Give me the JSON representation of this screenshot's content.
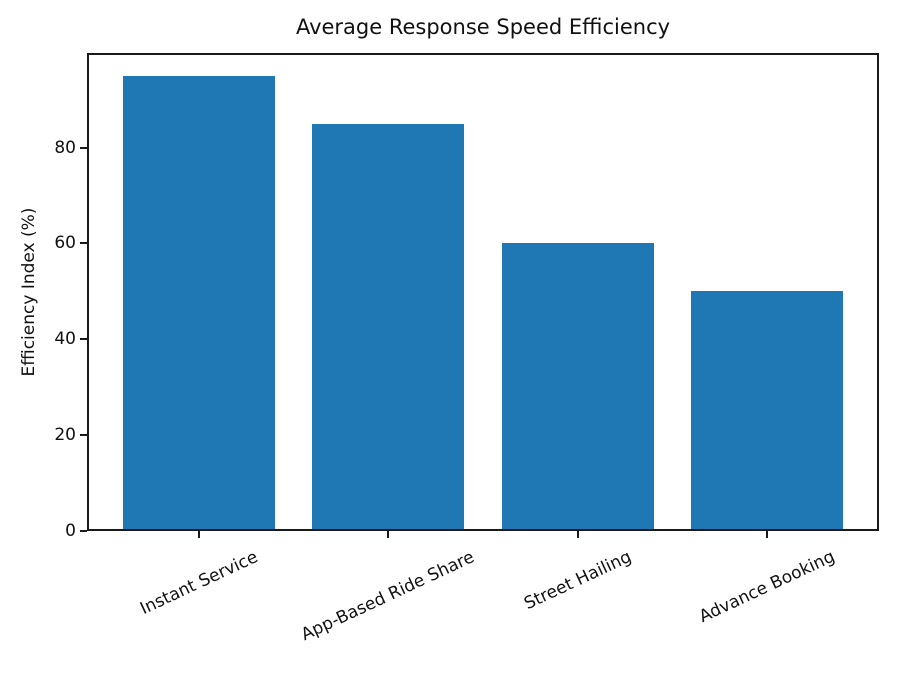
{
  "chart_data": {
    "type": "bar",
    "title": "Average Response Speed Efficiency",
    "categories": [
      "Instant Service",
      "App-Based Ride Share",
      "Street Hailing",
      "Advance Booking"
    ],
    "values": [
      95,
      85,
      60,
      50
    ],
    "xlabel": "",
    "ylabel": "Efficiency Index (%)",
    "ylim": [
      0,
      99.75
    ],
    "yticks": [
      0,
      20,
      40,
      60,
      80
    ],
    "bar_color": "#1f77b4",
    "bar_width_fraction": 0.8,
    "x_tick_label_rotation_deg": 25,
    "grid": false,
    "legend": false
  }
}
